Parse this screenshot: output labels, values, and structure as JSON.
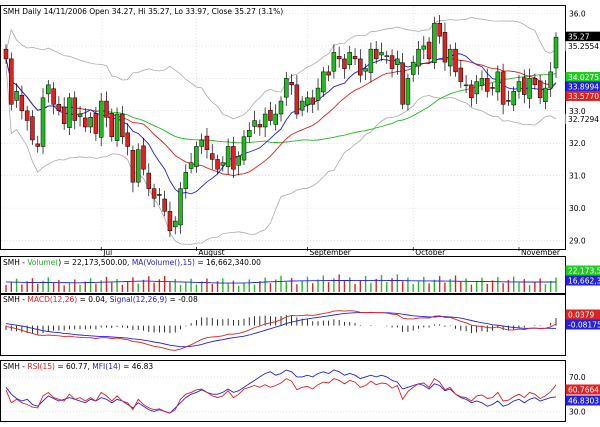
{
  "header": {
    "symbol": "SMH",
    "period": "Daily",
    "date": "14/11/2006",
    "open": "34.27",
    "high": "35.27",
    "low": "33.97",
    "close": "35.27",
    "change": "(3.1%)"
  },
  "price_panel": {
    "y_ticks": [
      "36.0",
      "35.0",
      "34.0",
      "33.0",
      "32.0",
      "31.0",
      "30.0",
      "29.0"
    ],
    "right_labels": [
      {
        "text": "35.27",
        "bg": "#000000",
        "fg": "#ffffff",
        "value": 35.27
      },
      {
        "text": "35.2554",
        "bg": "#ffffff",
        "fg": "#000000",
        "value": 35.2554
      },
      {
        "text": "34.0275",
        "bg": "#22cc22",
        "fg": "#ffffff",
        "value": 34.0275
      },
      {
        "text": "33.8994",
        "bg": "#2222dd",
        "fg": "#ffffff",
        "value": 33.8994
      },
      {
        "text": "33.5770",
        "bg": "#dd2222",
        "fg": "#ffffff",
        "value": 33.577
      },
      {
        "text": "32.7294",
        "bg": "#ffffff",
        "fg": "#000000",
        "value": 32.7294
      }
    ],
    "x_labels": [
      {
        "text": "Jul",
        "index": 18
      },
      {
        "text": "August",
        "index": 36
      },
      {
        "text": "September",
        "index": 57
      },
      {
        "text": "October",
        "index": 77
      },
      {
        "text": "November",
        "index": 97
      }
    ]
  },
  "volume_panel": {
    "legend_symbol": "SMH",
    "legend_volume": "Volume(",
    "legend_volume_value": ") = 22,173,500.00,",
    "legend_ma": "MA(Volume(),15)",
    "legend_ma_value": "= 16,662,340.00",
    "right_labels": [
      {
        "text": "22,173,50",
        "bg": "#22cc22",
        "fg": "#ffffff"
      },
      {
        "text": "16,662,34",
        "bg": "#2222dd",
        "fg": "#ffffff"
      }
    ]
  },
  "macd_panel": {
    "legend_symbol": "SMH",
    "legend_macd": "MACD(12,26)",
    "legend_macd_value": "= 0.04,",
    "legend_signal": "Signal(12,26,9)",
    "legend_signal_value": "= -0.08",
    "right_labels": [
      {
        "text": "0.0379",
        "bg": "#dd2222",
        "fg": "#ffffff"
      },
      {
        "text": "-0.081750",
        "bg": "#2222dd",
        "fg": "#ffffff"
      }
    ]
  },
  "rsi_panel": {
    "legend_symbol": "SMH",
    "legend_rsi": "RSI(15)",
    "legend_rsi_value": "= 60.77,",
    "legend_mfi": "MFI(14)",
    "legend_mfi_value": "= 46.83",
    "y_ticks": [
      "70.0",
      "30.0"
    ],
    "right_labels": [
      {
        "text": "60.7664",
        "bg": "#dd2222",
        "fg": "#ffffff"
      },
      {
        "text": "46.8303",
        "bg": "#2222dd",
        "fg": "#ffffff"
      }
    ]
  },
  "colors": {
    "up": "#22bb22",
    "down": "#dd2222",
    "ma_fast": "#2222dd",
    "ma_mid": "#dd2222",
    "ma_slow": "#22bb22",
    "bands": "#aaaaaa",
    "grid": "#cccccc"
  },
  "chart_data": {
    "type": "candlestick",
    "ylim": [
      28.8,
      36.2
    ],
    "close": [
      34.6,
      33.2,
      33.6,
      33.0,
      32.7,
      32.1,
      31.9,
      33.4,
      33.8,
      33.2,
      33.0,
      32.6,
      33.4,
      32.7,
      32.9,
      32.5,
      32.8,
      32.3,
      33.3,
      32.8,
      32.2,
      32.9,
      32.2,
      31.9,
      30.8,
      31.8,
      31.2,
      30.6,
      30.3,
      30.4,
      29.9,
      29.3,
      29.6,
      30.6,
      31.1,
      31.4,
      31.9,
      32.1,
      31.8,
      31.5,
      31.2,
      31.4,
      31.9,
      31.2,
      31.6,
      32.2,
      32.4,
      32.7,
      32.5,
      32.9,
      32.7,
      32.9,
      33.3,
      34.0,
      33.8,
      32.9,
      33.3,
      33.4,
      33.2,
      33.7,
      34.2,
      34.1,
      34.8,
      34.6,
      34.3,
      34.8,
      34.6,
      34.1,
      34.3,
      34.9,
      34.6,
      34.8,
      34.7,
      34.3,
      34.6,
      33.2,
      34.0,
      34.5,
      34.9,
      35.0,
      34.6,
      35.7,
      35.3,
      34.5,
      34.9,
      34.2,
      33.9,
      33.8,
      33.4,
      33.9,
      34.0,
      33.6,
      33.7,
      34.2,
      33.2,
      33.3,
      33.6,
      33.9,
      33.5,
      34.0,
      33.8,
      33.4,
      33.7,
      34.2,
      35.27
    ],
    "volume_ma": [
      16.8,
      16.5,
      16.3,
      16.2,
      16.0,
      15.9,
      15.7,
      15.8,
      15.9,
      15.7,
      15.5,
      15.6,
      15.5,
      15.3,
      15.4,
      15.6,
      15.8,
      16.0,
      16.3,
      16.5,
      16.8,
      17.0,
      17.2,
      17.5,
      17.8,
      18.0,
      18.2,
      18.1,
      17.9,
      17.7,
      17.4,
      17.2,
      17.0,
      16.8,
      16.5,
      16.3,
      16.0,
      15.8,
      15.6,
      15.3,
      15.1,
      14.9,
      14.8,
      14.8,
      14.9,
      15.1,
      15.4,
      15.8,
      16.2,
      16.6,
      17.0,
      17.4,
      17.7,
      18.0,
      18.3,
      18.5,
      18.6,
      18.7,
      18.8,
      18.9,
      19.0,
      19.0,
      19.1,
      19.1,
      19.2,
      19.2,
      19.3,
      19.3,
      19.4,
      19.4,
      19.5,
      19.4,
      19.3,
      19.2,
      19.1,
      19.0,
      18.8,
      18.7,
      18.6,
      18.5,
      18.5,
      18.4,
      18.3,
      18.2,
      18.1,
      18.0,
      17.9,
      17.8,
      17.7,
      17.6,
      17.5,
      17.4,
      17.3,
      17.2,
      17.0,
      16.9,
      16.8,
      16.8,
      16.7,
      16.7,
      16.7,
      16.7,
      16.7,
      16.7,
      16.66
    ],
    "macd": [
      -0.02,
      -0.05,
      -0.08,
      -0.12,
      -0.16,
      -0.2,
      -0.24,
      -0.25,
      -0.24,
      -0.25,
      -0.26,
      -0.28,
      -0.27,
      -0.29,
      -0.3,
      -0.31,
      -0.31,
      -0.33,
      -0.31,
      -0.31,
      -0.33,
      -0.32,
      -0.34,
      -0.36,
      -0.41,
      -0.42,
      -0.45,
      -0.49,
      -0.53,
      -0.55,
      -0.58,
      -0.62,
      -0.63,
      -0.6,
      -0.55,
      -0.49,
      -0.42,
      -0.35,
      -0.31,
      -0.29,
      -0.28,
      -0.26,
      -0.22,
      -0.22,
      -0.2,
      -0.16,
      -0.11,
      -0.05,
      -0.01,
      0.04,
      0.07,
      0.1,
      0.15,
      0.22,
      0.26,
      0.25,
      0.26,
      0.27,
      0.26,
      0.28,
      0.31,
      0.33,
      0.37,
      0.38,
      0.37,
      0.38,
      0.37,
      0.34,
      0.33,
      0.34,
      0.33,
      0.33,
      0.32,
      0.29,
      0.28,
      0.19,
      0.17,
      0.17,
      0.19,
      0.2,
      0.19,
      0.24,
      0.25,
      0.21,
      0.21,
      0.16,
      0.11,
      0.07,
      0.01,
      -0.01,
      -0.02,
      -0.05,
      -0.06,
      -0.03,
      -0.08,
      -0.11,
      -0.11,
      -0.09,
      -0.1,
      -0.07,
      -0.06,
      -0.08,
      -0.07,
      -0.03,
      0.04
    ],
    "signal": [
      0.05,
      0.03,
      0.01,
      -0.01,
      -0.04,
      -0.07,
      -0.1,
      -0.13,
      -0.15,
      -0.17,
      -0.18,
      -0.2,
      -0.21,
      -0.23,
      -0.24,
      -0.25,
      -0.26,
      -0.27,
      -0.28,
      -0.28,
      -0.29,
      -0.3,
      -0.31,
      -0.32,
      -0.34,
      -0.35,
      -0.37,
      -0.39,
      -0.42,
      -0.44,
      -0.47,
      -0.5,
      -0.52,
      -0.54,
      -0.54,
      -0.53,
      -0.51,
      -0.48,
      -0.44,
      -0.41,
      -0.38,
      -0.36,
      -0.33,
      -0.31,
      -0.29,
      -0.27,
      -0.24,
      -0.2,
      -0.16,
      -0.12,
      -0.08,
      -0.04,
      0.0,
      0.05,
      0.09,
      0.12,
      0.15,
      0.17,
      0.19,
      0.21,
      0.23,
      0.25,
      0.27,
      0.29,
      0.31,
      0.32,
      0.33,
      0.33,
      0.33,
      0.33,
      0.33,
      0.33,
      0.33,
      0.32,
      0.31,
      0.29,
      0.27,
      0.25,
      0.24,
      0.23,
      0.22,
      0.22,
      0.23,
      0.23,
      0.22,
      0.21,
      0.19,
      0.16,
      0.13,
      0.1,
      0.07,
      0.05,
      0.02,
      0.01,
      -0.01,
      -0.03,
      -0.05,
      -0.06,
      -0.07,
      -0.07,
      -0.07,
      -0.07,
      -0.07,
      -0.07,
      -0.08
    ],
    "rsi": [
      55,
      40,
      44,
      40,
      38,
      35,
      34,
      48,
      52,
      46,
      44,
      42,
      50,
      44,
      46,
      42,
      46,
      42,
      52,
      48,
      42,
      48,
      42,
      40,
      32,
      44,
      38,
      34,
      32,
      33,
      30,
      28,
      32,
      44,
      50,
      52,
      55,
      56,
      52,
      48,
      46,
      48,
      54,
      46,
      50,
      56,
      58,
      60,
      58,
      61,
      58,
      60,
      63,
      68,
      65,
      55,
      58,
      59,
      56,
      61,
      64,
      63,
      68,
      66,
      62,
      66,
      64,
      58,
      60,
      65,
      61,
      63,
      62,
      57,
      60,
      44,
      53,
      58,
      62,
      63,
      58,
      68,
      64,
      55,
      58,
      50,
      47,
      46,
      42,
      48,
      49,
      45,
      46,
      52,
      42,
      43,
      47,
      50,
      46,
      52,
      50,
      45,
      48,
      53,
      60.77
    ],
    "mfi": [
      58,
      50,
      45,
      42,
      44,
      38,
      36,
      42,
      48,
      45,
      42,
      44,
      46,
      44,
      42,
      40,
      44,
      42,
      46,
      44,
      40,
      44,
      42,
      38,
      34,
      40,
      36,
      32,
      30,
      32,
      30,
      28,
      34,
      40,
      46,
      50,
      52,
      55,
      52,
      50,
      50,
      52,
      56,
      52,
      54,
      58,
      62,
      66,
      70,
      74,
      76,
      72,
      74,
      78,
      76,
      70,
      70,
      72,
      70,
      74,
      76,
      74,
      78,
      76,
      72,
      74,
      72,
      68,
      70,
      72,
      70,
      72,
      70,
      66,
      64,
      56,
      58,
      60,
      62,
      60,
      56,
      62,
      60,
      54,
      56,
      50,
      46,
      44,
      40,
      42,
      40,
      36,
      38,
      42,
      36,
      38,
      42,
      44,
      40,
      44,
      46,
      42,
      44,
      46,
      46.83
    ]
  }
}
